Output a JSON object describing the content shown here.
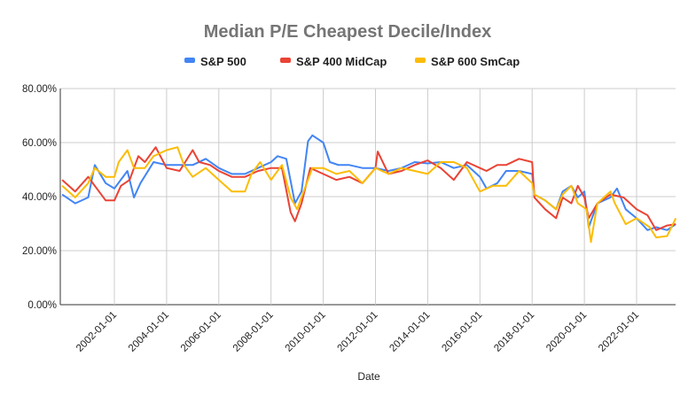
{
  "chart_data": {
    "type": "line",
    "title": "Median P/E Cheapest Decile/Index",
    "xlabel": "Date",
    "ylabel": "",
    "ylim": [
      0,
      80
    ],
    "y_unit": "%",
    "yticks": [
      "0.00%",
      "20.00%",
      "40.00%",
      "60.00%",
      "80.00%"
    ],
    "xticks": [
      "2002-01-01",
      "2004-01-01",
      "2006-01-01",
      "2008-01-01",
      "2010-01-01",
      "2012-01-01",
      "2014-01-01",
      "2016-01-01",
      "2018-01-01",
      "2020-01-01",
      "2022-01-01"
    ],
    "grid": true,
    "legend_position": "top",
    "series": [
      {
        "name": "S&P 500",
        "color": "#4285F4",
        "points": [
          [
            "2000-01",
            40.8
          ],
          [
            "2000-07",
            37.5
          ],
          [
            "2001-01",
            39.7
          ],
          [
            "2001-04",
            51.7
          ],
          [
            "2001-09",
            45
          ],
          [
            "2002-01",
            43
          ],
          [
            "2002-07",
            49.5
          ],
          [
            "2002-10",
            39.7
          ],
          [
            "2003-01",
            45
          ],
          [
            "2003-07",
            52.8
          ],
          [
            "2004-01",
            51.7
          ],
          [
            "2004-07",
            51.7
          ],
          [
            "2005-01",
            51.7
          ],
          [
            "2005-07",
            54
          ],
          [
            "2006-01",
            50.6
          ],
          [
            "2006-07",
            48.4
          ],
          [
            "2007-01",
            48.4
          ],
          [
            "2007-07",
            50.6
          ],
          [
            "2008-01",
            52.8
          ],
          [
            "2008-04",
            55
          ],
          [
            "2008-08",
            54
          ],
          [
            "2008-12",
            37.5
          ],
          [
            "2009-03",
            41.9
          ],
          [
            "2009-06",
            60.5
          ],
          [
            "2009-08",
            62.7
          ],
          [
            "2010-01",
            60
          ],
          [
            "2010-04",
            52.8
          ],
          [
            "2010-08",
            51.7
          ],
          [
            "2011-01",
            51.7
          ],
          [
            "2011-07",
            50.6
          ],
          [
            "2012-01",
            50.6
          ],
          [
            "2012-07",
            49.5
          ],
          [
            "2013-01",
            50.6
          ],
          [
            "2013-07",
            52.8
          ],
          [
            "2014-01",
            52.3
          ],
          [
            "2014-07",
            52.8
          ],
          [
            "2015-01",
            50.6
          ],
          [
            "2015-07",
            51.7
          ],
          [
            "2016-01",
            47.3
          ],
          [
            "2016-04",
            43
          ],
          [
            "2016-09",
            45
          ],
          [
            "2017-01",
            49.5
          ],
          [
            "2017-07",
            49.5
          ],
          [
            "2018-01",
            48.4
          ],
          [
            "2018-02",
            40.8
          ],
          [
            "2018-07",
            38.6
          ],
          [
            "2018-12",
            35.3
          ],
          [
            "2019-03",
            41.9
          ],
          [
            "2019-07",
            44
          ],
          [
            "2019-10",
            39.7
          ],
          [
            "2020-01",
            41.9
          ],
          [
            "2020-03",
            28.7
          ],
          [
            "2020-07",
            37.5
          ],
          [
            "2021-01",
            39.7
          ],
          [
            "2021-04",
            43
          ],
          [
            "2021-08",
            35.3
          ],
          [
            "2022-01",
            32
          ],
          [
            "2022-06",
            27.6
          ],
          [
            "2022-10",
            28.7
          ],
          [
            "2023-03",
            27.6
          ],
          [
            "2023-07",
            29.8
          ]
        ]
      },
      {
        "name": "S&P 400 MidCap",
        "color": "#EA4335",
        "points": [
          [
            "2000-01",
            46.2
          ],
          [
            "2000-07",
            41.9
          ],
          [
            "2001-01",
            47.3
          ],
          [
            "2001-04",
            44
          ],
          [
            "2001-09",
            38.6
          ],
          [
            "2002-01",
            38.6
          ],
          [
            "2002-04",
            44
          ],
          [
            "2002-08",
            46.2
          ],
          [
            "2002-12",
            55
          ],
          [
            "2003-03",
            52.8
          ],
          [
            "2003-08",
            58.3
          ],
          [
            "2004-01",
            50.6
          ],
          [
            "2004-07",
            49.5
          ],
          [
            "2005-01",
            57.2
          ],
          [
            "2005-04",
            52.8
          ],
          [
            "2005-09",
            51.7
          ],
          [
            "2006-01",
            49.5
          ],
          [
            "2006-07",
            47.3
          ],
          [
            "2007-01",
            47.3
          ],
          [
            "2007-07",
            49.5
          ],
          [
            "2008-01",
            50.6
          ],
          [
            "2008-06",
            50.6
          ],
          [
            "2008-10",
            34.2
          ],
          [
            "2008-12",
            30.9
          ],
          [
            "2009-03",
            37.5
          ],
          [
            "2009-07",
            50.6
          ],
          [
            "2010-01",
            48.4
          ],
          [
            "2010-07",
            46.2
          ],
          [
            "2011-01",
            47.3
          ],
          [
            "2011-07",
            45
          ],
          [
            "2012-01",
            50.6
          ],
          [
            "2012-02",
            56.7
          ],
          [
            "2012-07",
            48.4
          ],
          [
            "2013-01",
            49.5
          ],
          [
            "2013-07",
            51.7
          ],
          [
            "2014-01",
            53.4
          ],
          [
            "2014-07",
            50.6
          ],
          [
            "2015-01",
            46.2
          ],
          [
            "2015-07",
            52.8
          ],
          [
            "2016-01",
            50.6
          ],
          [
            "2016-04",
            49.5
          ],
          [
            "2016-09",
            51.7
          ],
          [
            "2017-01",
            51.7
          ],
          [
            "2017-07",
            54
          ],
          [
            "2018-01",
            52.8
          ],
          [
            "2018-02",
            39.7
          ],
          [
            "2018-07",
            35.3
          ],
          [
            "2018-12",
            32
          ],
          [
            "2019-03",
            39.7
          ],
          [
            "2019-07",
            37.5
          ],
          [
            "2019-10",
            44
          ],
          [
            "2020-01",
            39.7
          ],
          [
            "2020-03",
            32
          ],
          [
            "2020-07",
            37.5
          ],
          [
            "2021-01",
            40.8
          ],
          [
            "2021-07",
            39.7
          ],
          [
            "2022-01",
            35.3
          ],
          [
            "2022-06",
            33.1
          ],
          [
            "2022-10",
            27.6
          ],
          [
            "2023-03",
            29.3
          ],
          [
            "2023-07",
            29.8
          ]
        ]
      },
      {
        "name": "S&P 600 SmCap",
        "color": "#FBBC04",
        "points": [
          [
            "2000-01",
            44
          ],
          [
            "2000-07",
            39.7
          ],
          [
            "2001-01",
            45
          ],
          [
            "2001-04",
            50.6
          ],
          [
            "2001-09",
            47.3
          ],
          [
            "2002-01",
            47.3
          ],
          [
            "2002-03",
            52.8
          ],
          [
            "2002-07",
            57.2
          ],
          [
            "2002-10",
            50.6
          ],
          [
            "2003-03",
            50.6
          ],
          [
            "2003-07",
            55
          ],
          [
            "2004-01",
            57.2
          ],
          [
            "2004-06",
            58.3
          ],
          [
            "2004-09",
            51.7
          ],
          [
            "2005-01",
            47.3
          ],
          [
            "2005-07",
            50.6
          ],
          [
            "2006-01",
            46.2
          ],
          [
            "2006-07",
            41.9
          ],
          [
            "2007-01",
            41.9
          ],
          [
            "2007-04",
            48.4
          ],
          [
            "2007-08",
            52.8
          ],
          [
            "2008-01",
            46.2
          ],
          [
            "2008-06",
            51.7
          ],
          [
            "2008-10",
            39.7
          ],
          [
            "2009-01",
            35.3
          ],
          [
            "2009-04",
            41.9
          ],
          [
            "2009-08",
            50.6
          ],
          [
            "2010-01",
            50.6
          ],
          [
            "2010-07",
            48.4
          ],
          [
            "2011-01",
            49.5
          ],
          [
            "2011-07",
            45
          ],
          [
            "2012-01",
            50.6
          ],
          [
            "2012-07",
            48.4
          ],
          [
            "2013-01",
            50.6
          ],
          [
            "2013-07",
            49.5
          ],
          [
            "2014-01",
            48.4
          ],
          [
            "2014-07",
            52.8
          ],
          [
            "2015-01",
            52.8
          ],
          [
            "2015-07",
            50.6
          ],
          [
            "2016-01",
            41.9
          ],
          [
            "2016-07",
            44
          ],
          [
            "2017-01",
            44
          ],
          [
            "2017-07",
            49.5
          ],
          [
            "2018-01",
            45
          ],
          [
            "2018-02",
            40.8
          ],
          [
            "2018-07",
            38.6
          ],
          [
            "2018-12",
            35.3
          ],
          [
            "2019-03",
            40.8
          ],
          [
            "2019-07",
            44
          ],
          [
            "2019-10",
            37.5
          ],
          [
            "2020-02",
            35.3
          ],
          [
            "2020-04",
            23.2
          ],
          [
            "2020-07",
            37.5
          ],
          [
            "2021-01",
            41.9
          ],
          [
            "2021-03",
            37.5
          ],
          [
            "2021-08",
            29.8
          ],
          [
            "2022-01",
            32
          ],
          [
            "2022-07",
            28.7
          ],
          [
            "2022-10",
            24.9
          ],
          [
            "2023-03",
            25.4
          ],
          [
            "2023-07",
            32
          ]
        ]
      }
    ]
  }
}
